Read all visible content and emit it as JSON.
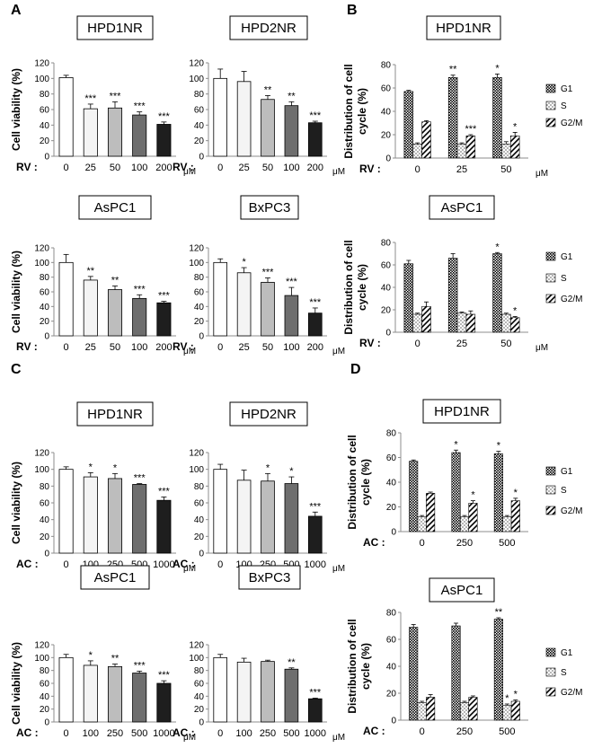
{
  "panel_labels": [
    "A",
    "B",
    "C",
    "D"
  ],
  "styles": {
    "vbar_fills": [
      "#ffffff",
      "#f4f4f4",
      "#bdbdbd",
      "#6e6e6e",
      "#1e1e1e"
    ],
    "axis_color": "#8c8c8c",
    "stroke": "#000000"
  },
  "chart_data": [
    {
      "type": "bar",
      "panel": "A",
      "title": "HPD1NR",
      "ylabel": "Cell viability (%)",
      "treatment_label": "RV :",
      "unit": "μM",
      "categories": [
        "0",
        "25",
        "50",
        "100",
        "200"
      ],
      "values": [
        101,
        61,
        62,
        53,
        41
      ],
      "errors": [
        3,
        6,
        8,
        4,
        3
      ],
      "significance": [
        "",
        "***",
        "***",
        "***",
        "***"
      ],
      "ylim": [
        0,
        120
      ],
      "yticks": [
        0,
        20,
        40,
        60,
        80,
        100,
        120
      ]
    },
    {
      "type": "bar",
      "panel": "A",
      "title": "HPD2NR",
      "ylabel": "",
      "treatment_label": "RV :",
      "unit": "μM",
      "categories": [
        "0",
        "25",
        "50",
        "100",
        "200"
      ],
      "values": [
        100,
        96,
        73,
        65,
        43
      ],
      "errors": [
        12,
        13,
        5,
        5,
        2
      ],
      "significance": [
        "",
        "",
        "**",
        "**",
        "***"
      ],
      "ylim": [
        0,
        120
      ],
      "yticks": [
        0,
        20,
        40,
        60,
        80,
        100,
        120
      ]
    },
    {
      "type": "bar",
      "panel": "A",
      "title": "AsPC1",
      "ylabel": "Cell viability (%)",
      "treatment_label": "RV :",
      "unit": "μM",
      "categories": [
        "0",
        "25",
        "50",
        "100",
        "200"
      ],
      "values": [
        100,
        76,
        63,
        51,
        45
      ],
      "errors": [
        11,
        5,
        5,
        5,
        2
      ],
      "significance": [
        "",
        "**",
        "**",
        "***",
        "***"
      ],
      "ylim": [
        0,
        120
      ],
      "yticks": [
        0,
        20,
        40,
        60,
        80,
        100,
        120
      ]
    },
    {
      "type": "bar",
      "panel": "A",
      "title": "BxPC3",
      "ylabel": "",
      "treatment_label": "RV :",
      "unit": "μM",
      "categories": [
        "0",
        "25",
        "50",
        "100",
        "200"
      ],
      "values": [
        100,
        86,
        73,
        55,
        31
      ],
      "errors": [
        5,
        7,
        6,
        11,
        7
      ],
      "significance": [
        "",
        "*",
        "***",
        "***",
        "***"
      ],
      "ylim": [
        0,
        120
      ],
      "yticks": [
        0,
        20,
        40,
        60,
        80,
        100,
        120
      ]
    },
    {
      "type": "bar",
      "panel": "B",
      "title": "HPD1NR",
      "ylabel": "Distribution of cell cycle (%)",
      "treatment_label": "RV :",
      "unit": "μM",
      "categories": [
        "0",
        "25",
        "50"
      ],
      "series": [
        {
          "name": "G1",
          "values": [
            57,
            69,
            69
          ],
          "errors": [
            1,
            2,
            3
          ]
        },
        {
          "name": "S",
          "values": [
            12,
            12,
            12
          ],
          "errors": [
            1,
            1,
            2
          ]
        },
        {
          "name": "G2/M",
          "values": [
            31,
            19,
            19
          ],
          "errors": [
            1,
            1,
            3
          ]
        }
      ],
      "significance": [
        [
          "",
          "**",
          "*"
        ],
        [
          "",
          "",
          ""
        ],
        [
          "",
          "***",
          "*"
        ]
      ],
      "ylim": [
        0,
        80
      ],
      "yticks": [
        0,
        20,
        40,
        60,
        80
      ]
    },
    {
      "type": "bar",
      "panel": "B",
      "title": "AsPC1",
      "ylabel": "Distribution of cell cycle (%)",
      "treatment_label": "RV :",
      "unit": "μM",
      "categories": [
        "0",
        "25",
        "50"
      ],
      "series": [
        {
          "name": "G1",
          "values": [
            61,
            66,
            70
          ],
          "errors": [
            3,
            4,
            1
          ]
        },
        {
          "name": "S",
          "values": [
            16,
            17,
            16
          ],
          "errors": [
            1,
            1,
            1
          ]
        },
        {
          "name": "G2/M",
          "values": [
            23,
            16,
            13
          ],
          "errors": [
            4,
            3,
            1
          ]
        }
      ],
      "significance": [
        [
          "",
          "",
          "*"
        ],
        [
          "",
          "",
          ""
        ],
        [
          "",
          "",
          "*"
        ]
      ],
      "ylim": [
        0,
        80
      ],
      "yticks": [
        0,
        20,
        40,
        60,
        80
      ]
    },
    {
      "type": "bar",
      "panel": "C",
      "title": "HPD1NR",
      "ylabel": "Cell viability (%)",
      "treatment_label": "AC :",
      "unit": "μM",
      "categories": [
        "0",
        "100",
        "250",
        "500",
        "1000"
      ],
      "values": [
        100,
        91,
        89,
        82,
        63
      ],
      "errors": [
        3,
        5,
        6,
        1,
        4
      ],
      "significance": [
        "",
        "*",
        "*",
        "***",
        "***"
      ],
      "ylim": [
        0,
        120
      ],
      "yticks": [
        0,
        20,
        40,
        60,
        80,
        100,
        120
      ]
    },
    {
      "type": "bar",
      "panel": "C",
      "title": "HPD2NR",
      "ylabel": "",
      "treatment_label": "AC :",
      "unit": "μM",
      "categories": [
        "0",
        "100",
        "250",
        "500",
        "1000"
      ],
      "values": [
        100,
        87,
        86,
        83,
        44
      ],
      "errors": [
        6,
        12,
        9,
        8,
        5
      ],
      "significance": [
        "",
        "",
        "*",
        "*",
        "***"
      ],
      "ylim": [
        0,
        120
      ],
      "yticks": [
        0,
        20,
        40,
        60,
        80,
        100,
        120
      ]
    },
    {
      "type": "bar",
      "panel": "C",
      "title": "AsPC1",
      "ylabel": "Cell viability (%)",
      "treatment_label": "AC :",
      "unit": "μM",
      "categories": [
        "0",
        "100",
        "250",
        "500",
        "1000"
      ],
      "values": [
        100,
        88,
        86,
        76,
        60
      ],
      "errors": [
        5,
        7,
        4,
        3,
        4
      ],
      "significance": [
        "",
        "*",
        "**",
        "***",
        "***"
      ],
      "ylim": [
        0,
        120
      ],
      "yticks": [
        0,
        20,
        40,
        60,
        80,
        100,
        120
      ]
    },
    {
      "type": "bar",
      "panel": "C",
      "title": "BxPC3",
      "ylabel": "",
      "treatment_label": "AC :",
      "unit": "μM",
      "categories": [
        "0",
        "100",
        "250",
        "500",
        "1000"
      ],
      "values": [
        100,
        93,
        94,
        82,
        36
      ],
      "errors": [
        5,
        6,
        2,
        2,
        1
      ],
      "significance": [
        "",
        "",
        "",
        "**",
        "***"
      ],
      "ylim": [
        0,
        120
      ],
      "yticks": [
        0,
        20,
        40,
        60,
        80,
        100,
        120
      ]
    },
    {
      "type": "bar",
      "panel": "D",
      "title": "HPD1NR",
      "ylabel": "Distribution of cell cycle (%)",
      "treatment_label": "AC :",
      "unit": "",
      "categories": [
        "0",
        "250",
        "500"
      ],
      "series": [
        {
          "name": "G1",
          "values": [
            57,
            64,
            63
          ],
          "errors": [
            1,
            2,
            2
          ]
        },
        {
          "name": "S",
          "values": [
            12,
            12,
            12
          ],
          "errors": [
            1,
            1,
            1
          ]
        },
        {
          "name": "G2/M",
          "values": [
            31,
            23,
            25
          ],
          "errors": [
            1,
            2,
            2
          ]
        }
      ],
      "significance": [
        [
          "",
          "*",
          "*"
        ],
        [
          "",
          "",
          ""
        ],
        [
          "",
          "*",
          "*"
        ]
      ],
      "ylim": [
        0,
        80
      ],
      "yticks": [
        0,
        20,
        40,
        60,
        80
      ]
    },
    {
      "type": "bar",
      "panel": "D",
      "title": "AsPC1",
      "ylabel": "Distribution of cell cycle (%)",
      "treatment_label": "AC :",
      "unit": "",
      "categories": [
        "0",
        "250",
        "500"
      ],
      "series": [
        {
          "name": "G1",
          "values": [
            69,
            70,
            75
          ],
          "errors": [
            2,
            2,
            1
          ]
        },
        {
          "name": "S",
          "values": [
            13,
            13,
            11
          ],
          "errors": [
            1,
            1,
            1
          ]
        },
        {
          "name": "G2/M",
          "values": [
            17,
            17,
            14
          ],
          "errors": [
            2,
            1,
            1
          ]
        }
      ],
      "significance": [
        [
          "",
          "",
          "**"
        ],
        [
          "",
          "",
          "*"
        ],
        [
          "",
          "",
          "*"
        ]
      ],
      "ylim": [
        0,
        80
      ],
      "yticks": [
        0,
        20,
        40,
        60,
        80
      ]
    }
  ]
}
